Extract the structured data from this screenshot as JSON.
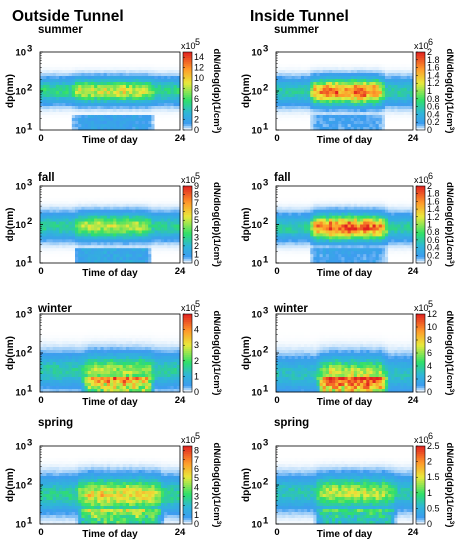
{
  "headers": {
    "left": "Outside Tunnel",
    "right": "Inside Tunnel"
  },
  "colors": {
    "colormap": [
      "#ffffff",
      "#3d9cf0",
      "#2fb6d8",
      "#2fe06a",
      "#e8ea3c",
      "#ff9a2a",
      "#e02020"
    ]
  },
  "chart_data": [
    {
      "type": "heatmap",
      "panel": "outside-summer",
      "season": "summer",
      "xlabel": "Time of day",
      "ylabel": "dp(nm)",
      "xlim": [
        0,
        24
      ],
      "ylim": [
        10,
        1000
      ],
      "yscale": "log",
      "x_ticks": [
        "0",
        "24"
      ],
      "y_ticks": [
        "10",
        "10",
        "10"
      ],
      "y_tick_exponents": [
        "3",
        "2",
        "1"
      ],
      "colorbar": {
        "label": "dN/dlog(dp)(1/cm",
        "label_exponent": "3",
        "label_suffix": ")",
        "multiplier": "x10",
        "multiplier_exponent": "5",
        "max": 15,
        "ticks": [
          "14",
          "12",
          "10",
          "8",
          "6",
          "4",
          "2",
          "0"
        ]
      }
    },
    {
      "type": "heatmap",
      "panel": "inside-summer",
      "season": "summer",
      "xlabel": "Time of day",
      "ylabel": "dp(nm)",
      "xlim": [
        0,
        24
      ],
      "ylim": [
        10,
        1000
      ],
      "yscale": "log",
      "x_ticks": [
        "0",
        "24"
      ],
      "y_ticks": [
        "10",
        "10",
        "10"
      ],
      "y_tick_exponents": [
        "3",
        "2",
        "1"
      ],
      "colorbar": {
        "label": "dN/dlog(dp)(1/cm",
        "label_exponent": "3",
        "label_suffix": ")",
        "multiplier": "x10",
        "multiplier_exponent": "6",
        "max": 2,
        "ticks": [
          "2",
          "1.8",
          "1.6",
          "1.4",
          "1.2",
          "1",
          "0.8",
          "0.6",
          "0.4",
          "0.2",
          "0"
        ]
      }
    },
    {
      "type": "heatmap",
      "panel": "outside-fall",
      "season": "fall",
      "xlabel": "Time of day",
      "ylabel": "dp(nm)",
      "xlim": [
        0,
        24
      ],
      "ylim": [
        10,
        1000
      ],
      "yscale": "log",
      "x_ticks": [
        "0",
        "24"
      ],
      "y_ticks": [
        "10",
        "10",
        "10"
      ],
      "y_tick_exponents": [
        "3",
        "2",
        "1"
      ],
      "colorbar": {
        "label": "dN/dlog(dp)(1/cm",
        "label_exponent": "3",
        "label_suffix": ")",
        "multiplier": "x10",
        "multiplier_exponent": "5",
        "max": 9,
        "ticks": [
          "9",
          "8",
          "7",
          "6",
          "5",
          "4",
          "3",
          "2",
          "1",
          "0"
        ]
      }
    },
    {
      "type": "heatmap",
      "panel": "inside-fall",
      "season": "fall",
      "xlabel": "Time of day",
      "ylabel": "dp(nm)",
      "xlim": [
        0,
        24
      ],
      "ylim": [
        10,
        1000
      ],
      "yscale": "log",
      "x_ticks": [
        "0",
        "24"
      ],
      "y_ticks": [
        "10",
        "10",
        "10"
      ],
      "y_tick_exponents": [
        "3",
        "2",
        "1"
      ],
      "colorbar": {
        "label": "dN/dlog(dp)(1/cm",
        "label_exponent": "3",
        "label_suffix": ")",
        "multiplier": "x10",
        "multiplier_exponent": "6",
        "max": 2,
        "ticks": [
          "2",
          "1.8",
          "1.6",
          "1.4",
          "1.2",
          "1",
          "0.8",
          "0.6",
          "0.4",
          "0.2",
          "0"
        ]
      }
    },
    {
      "type": "heatmap",
      "panel": "outside-winter",
      "season": "winter",
      "xlabel": "Time of day",
      "ylabel": "dp(nm)",
      "xlim": [
        0,
        24
      ],
      "ylim": [
        10,
        1000
      ],
      "yscale": "log",
      "x_ticks": [
        "0",
        "24"
      ],
      "y_ticks": [
        "10",
        "10",
        "10"
      ],
      "y_tick_exponents": [
        "3",
        "2",
        "1"
      ],
      "colorbar": {
        "label": "dN/dlog(dp)(1/cm",
        "label_exponent": "3",
        "label_suffix": ")",
        "multiplier": "x10",
        "multiplier_exponent": "5",
        "max": 5,
        "ticks": [
          "5",
          "4",
          "3",
          "2",
          "1",
          "0"
        ]
      }
    },
    {
      "type": "heatmap",
      "panel": "inside-winter",
      "season": "winter",
      "xlabel": "Time of day",
      "ylabel": "dp(nm)",
      "xlim": [
        0,
        24
      ],
      "ylim": [
        10,
        1000
      ],
      "yscale": "log",
      "x_ticks": [
        "0",
        "24"
      ],
      "y_ticks": [
        "10",
        "10",
        "10"
      ],
      "y_tick_exponents": [
        "3",
        "2",
        "1"
      ],
      "colorbar": {
        "label": "dN/dlog(dp)(1/cm",
        "label_exponent": "3",
        "label_suffix": ")",
        "multiplier": "x10",
        "multiplier_exponent": "5",
        "max": 12,
        "ticks": [
          "12",
          "10",
          "8",
          "6",
          "4",
          "2",
          "0"
        ]
      }
    },
    {
      "type": "heatmap",
      "panel": "outside-spring",
      "season": "spring",
      "xlabel": "Time of day",
      "ylabel": "dp(nm)",
      "xlim": [
        0,
        24
      ],
      "ylim": [
        10,
        1000
      ],
      "yscale": "log",
      "x_ticks": [
        "0",
        "24"
      ],
      "y_ticks": [
        "10",
        "10",
        "10"
      ],
      "y_tick_exponents": [
        "3",
        "2",
        "1"
      ],
      "colorbar": {
        "label": "dN/dlog(dp)(1/cm",
        "label_exponent": "3",
        "label_suffix": ")",
        "multiplier": "x10",
        "multiplier_exponent": "5",
        "max": 8.5,
        "ticks": [
          "8",
          "7",
          "6",
          "5",
          "4",
          "3",
          "2",
          "1",
          "0"
        ]
      }
    },
    {
      "type": "heatmap",
      "panel": "inside-spring",
      "season": "spring",
      "xlabel": "Time of day",
      "ylabel": "dp(nm)",
      "xlim": [
        0,
        24
      ],
      "ylim": [
        10,
        1000
      ],
      "yscale": "log",
      "x_ticks": [
        "0",
        "24"
      ],
      "y_ticks": [
        "10",
        "10",
        "10"
      ],
      "y_tick_exponents": [
        "3",
        "2",
        "1"
      ],
      "colorbar": {
        "label": "dN/dlog(dp)(1/cm",
        "label_exponent": "3",
        "label_suffix": ")",
        "multiplier": "x10",
        "multiplier_exponent": "6",
        "max": 2.5,
        "ticks": [
          "2.5",
          "2",
          "1.5",
          "1",
          "0.5",
          "0"
        ]
      }
    }
  ]
}
